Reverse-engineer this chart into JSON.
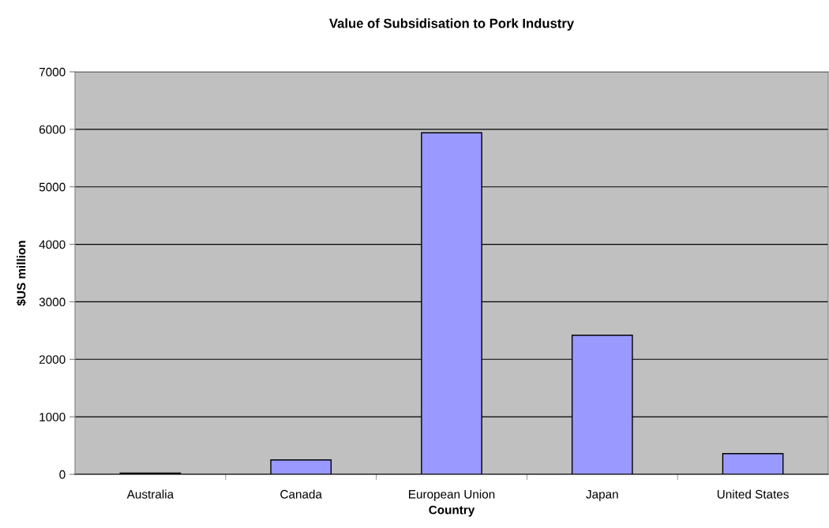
{
  "chart_data": {
    "type": "bar",
    "title": "Value of Subsidisation to Pork Industry",
    "xlabel": "Country",
    "ylabel": "$US million",
    "categories": [
      "Australia",
      "Canada",
      "European Union",
      "Japan",
      "United States"
    ],
    "values": [
      20,
      250,
      5940,
      2420,
      360
    ],
    "color": "#9999ff",
    "ylim": [
      0,
      7000
    ],
    "yticks": [
      0,
      1000,
      2000,
      3000,
      4000,
      5000,
      6000,
      7000
    ],
    "grid": "y",
    "legend": false
  }
}
